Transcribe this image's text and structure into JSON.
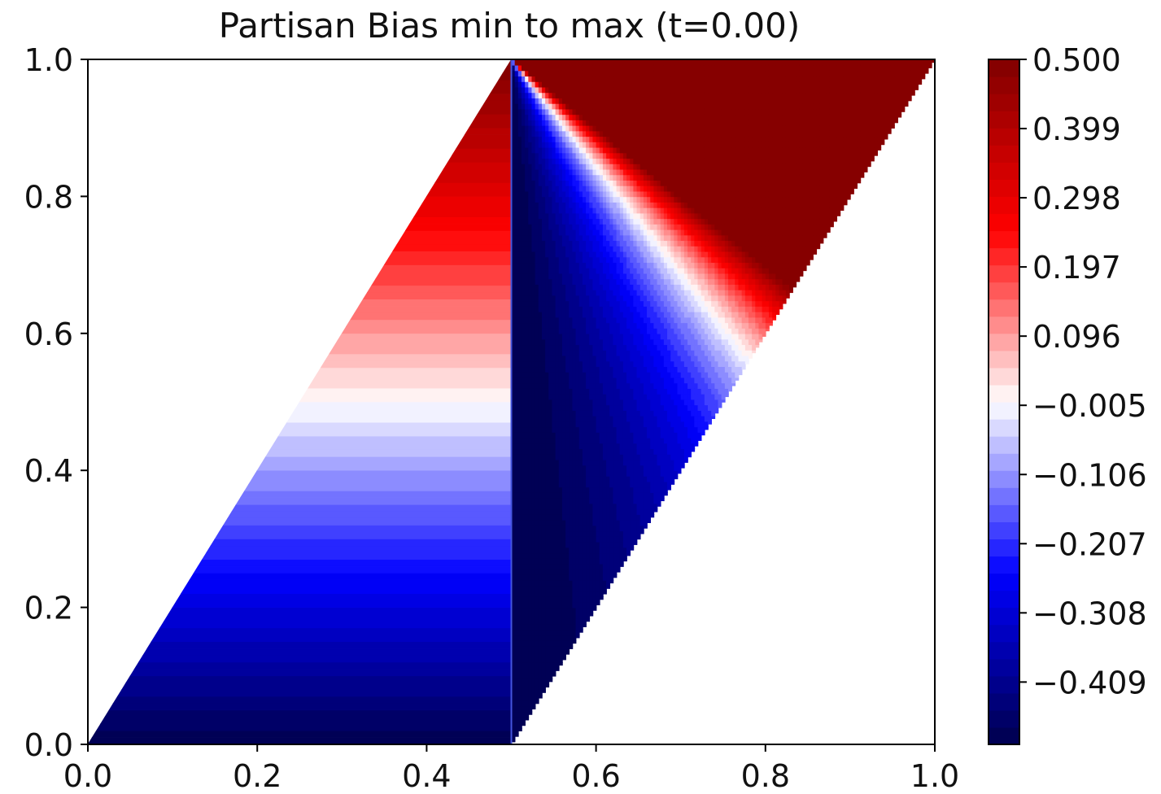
{
  "chart_data": {
    "type": "heatmap",
    "title": "Partisan Bias min to max (t=0.00)",
    "xlabel": "",
    "ylabel": "",
    "xlim": [
      0.0,
      1.0
    ],
    "ylim": [
      0.0,
      1.0
    ],
    "xticks": [
      "0.0",
      "0.2",
      "0.4",
      "0.6",
      "0.8",
      "1.0"
    ],
    "yticks": [
      "0.0",
      "0.2",
      "0.4",
      "0.6",
      "0.8",
      "1.0"
    ],
    "grid": false,
    "colorbar": {
      "vmin": -0.5,
      "vmax": 0.5,
      "levels": 40,
      "ticks": [
        "0.500",
        "0.399",
        "0.298",
        "0.197",
        "0.096",
        "−0.005",
        "−0.106",
        "−0.207",
        "−0.308",
        "−0.409"
      ],
      "colormap": "seismic"
    },
    "regions": [
      {
        "name": "left-wedge",
        "domain": "y >= 0, x <= 0.5, x >= y/2",
        "value_rule": "bias = y - 0.5 (horizontal bands)"
      },
      {
        "name": "right-wedge",
        "domain": "x >= 0.5, y >= 2x - 1",
        "value_rule": "bias from -0.5 at x = 0.5 rising to about +0.5 near the lower-right boundary"
      }
    ],
    "colors": {
      "deep_blue": "#00004c",
      "blue": "#0000ff",
      "white": "#ffffff",
      "red": "#ff0000",
      "deep_red": "#800000"
    }
  }
}
